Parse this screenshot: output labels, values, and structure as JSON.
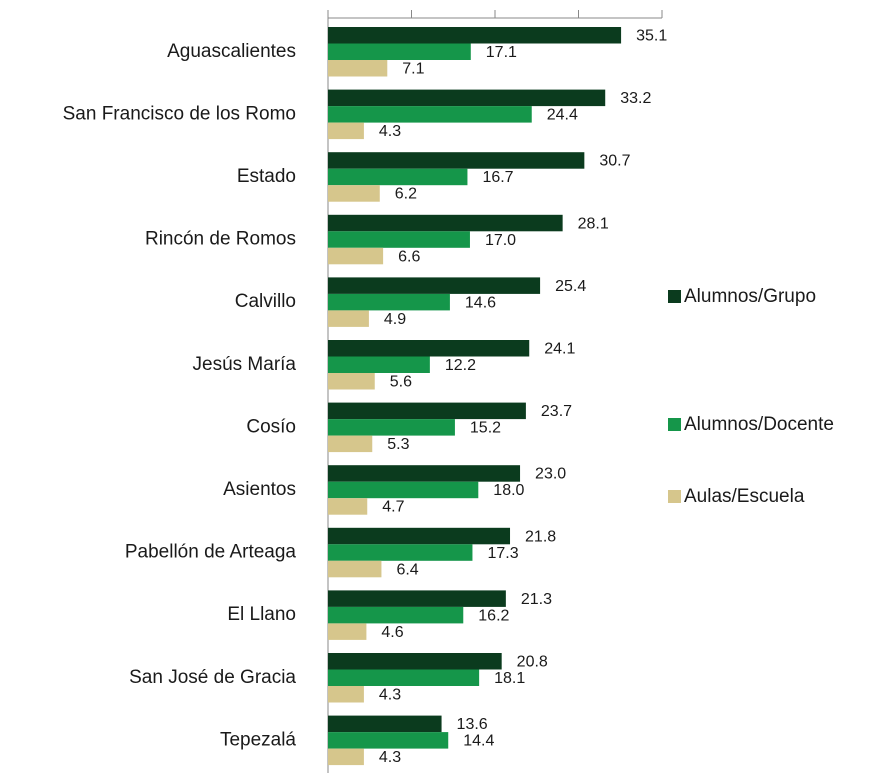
{
  "chart_data": {
    "type": "bar",
    "orientation": "horizontal",
    "categories": [
      "Aguascalientes",
      "San Francisco de los Romo",
      "Estado",
      "Rincón de Romos",
      "Calvillo",
      "Jesús María",
      "Cosío",
      "Asientos",
      "Pabellón de Arteaga",
      "El Llano",
      "San José de Gracia",
      "Tepezalá"
    ],
    "series": [
      {
        "name": "Alumnos/Grupo",
        "color": "#0b3b1e",
        "values": [
          35.1,
          33.2,
          30.7,
          28.1,
          25.4,
          24.1,
          23.7,
          23.0,
          21.8,
          21.3,
          20.8,
          13.6
        ],
        "value_labels": [
          "35.1",
          "33.2",
          "30.7",
          "28.1",
          "25.4",
          "24.1",
          "23.7",
          "23.0",
          "21.8",
          "21.3",
          "20.8",
          "13.6"
        ]
      },
      {
        "name": "Alumnos/Docente",
        "color": "#15964a",
        "values": [
          17.1,
          24.4,
          16.7,
          17.0,
          14.6,
          12.2,
          15.2,
          18.0,
          17.3,
          16.2,
          18.1,
          14.4
        ],
        "value_labels": [
          "17.1",
          "24.4",
          "16.7",
          "17.0",
          "14.6",
          "12.2",
          "15.2",
          "18.0",
          "17.3",
          "16.2",
          "18.1",
          "14.4"
        ]
      },
      {
        "name": "Aulas/Escuela",
        "color": "#d6c68c",
        "values": [
          7.1,
          4.3,
          6.2,
          6.6,
          4.9,
          5.6,
          5.3,
          4.7,
          6.4,
          4.6,
          4.3,
          4.3
        ],
        "value_labels": [
          "7.1",
          "4.3",
          "6.2",
          "6.6",
          "4.9",
          "5.6",
          "5.3",
          "4.7",
          "6.4",
          "4.6",
          "4.3",
          "4.3"
        ]
      }
    ],
    "xlim": [
      0,
      40
    ],
    "xticks": [
      0,
      10,
      20,
      30,
      40
    ],
    "legend": "right"
  }
}
